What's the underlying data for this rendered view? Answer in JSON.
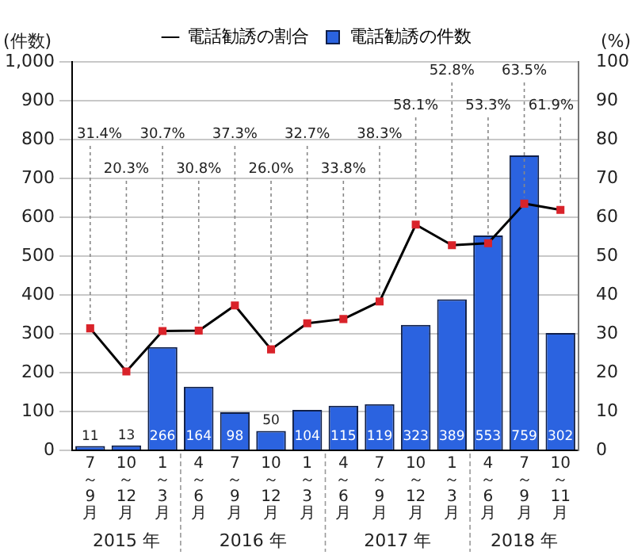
{
  "chart_data": {
    "type": "bar",
    "categories": [
      "7～9月",
      "10～12月",
      "1～3月",
      "4～6月",
      "7～9月",
      "10～12月",
      "1～3月",
      "4～6月",
      "7～9月",
      "10～12月",
      "1～3月",
      "4～6月",
      "7～9月",
      "10～11月"
    ],
    "series": [
      {
        "name": "電話勧誘の割合",
        "type": "line",
        "axis": "y2",
        "color": "#000000",
        "colors": [
          "#d9232a",
          "#d9232a",
          "#d9232a",
          "#d9232a",
          "#d9232a",
          "#d9232a",
          "#d9232a",
          "#d9232a",
          "#d9232a",
          "#d9232a",
          "#d9232a",
          "#d9232a",
          "#d9232a",
          "#d9232a"
        ],
        "values": [
          31.4,
          20.3,
          30.7,
          30.8,
          37.3,
          26.0,
          32.7,
          33.8,
          38.3,
          58.1,
          52.8,
          53.3,
          63.5,
          61.9
        ],
        "value_labels": [
          "31.4%",
          "20.3%",
          "30.7%",
          "30.8%",
          "37.3%",
          "26.0%",
          "32.7%",
          "33.8%",
          "38.3%",
          "58.1%",
          "52.8%",
          "53.3%",
          "63.5%",
          "61.9%"
        ]
      },
      {
        "name": "電話勧誘の件数",
        "color": "#2b63e0",
        "values": [
          11,
          13,
          266,
          164,
          98,
          50,
          104,
          115,
          119,
          323,
          389,
          553,
          759,
          302
        ],
        "value_labels": [
          "11",
          "13",
          "266",
          "164",
          "98",
          "50",
          "104",
          "115",
          "119",
          "323",
          "389",
          "553",
          "759",
          "302"
        ]
      }
    ],
    "ylabel": "(件数)",
    "y2label": "(%)",
    "ylim": [
      0,
      1000
    ],
    "yticks": [
      0,
      100,
      200,
      300,
      400,
      500,
      600,
      700,
      800,
      900,
      {
        "value": 1000,
        "label": "1,000"
      }
    ],
    "y2lim": [
      0,
      100
    ],
    "y2ticks": [
      0,
      10,
      20,
      30,
      40,
      50,
      60,
      70,
      80,
      90,
      100
    ],
    "grid": "y",
    "legend": "top",
    "marker": "square",
    "annotations": [
      "2015 年",
      "2016 年",
      "2017 年",
      "2018 年"
    ]
  }
}
